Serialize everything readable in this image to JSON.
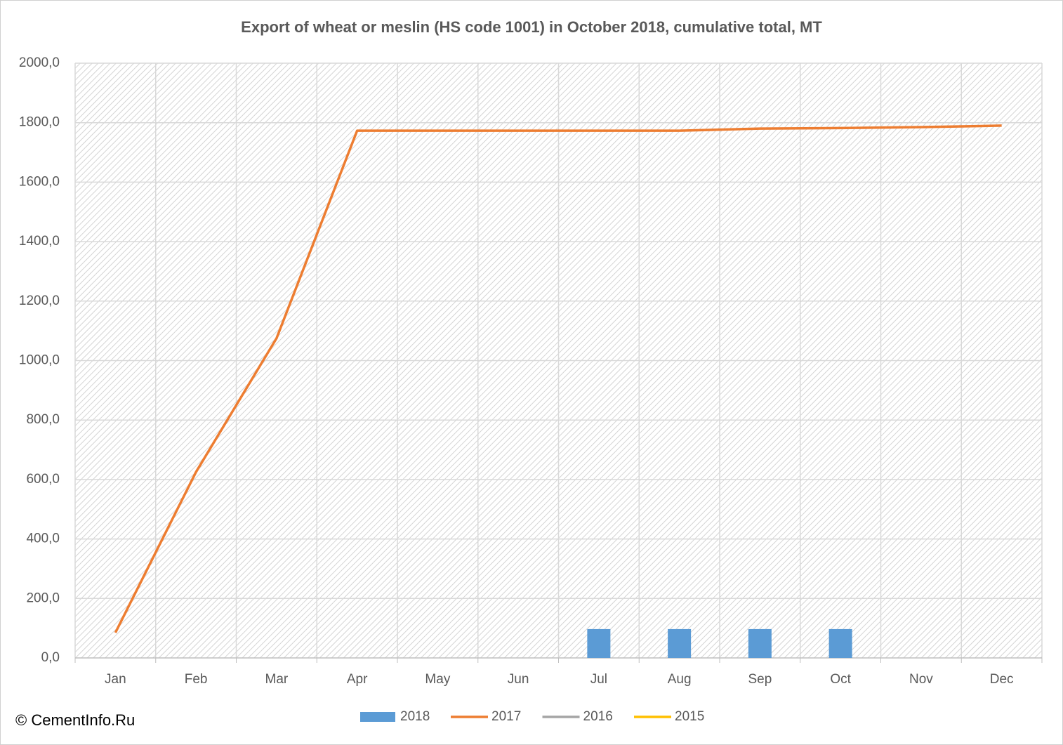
{
  "chart_data": {
    "type": "combo",
    "title": "Export of wheat or meslin  (HS code 1001) in October 2018, cumulative total, MT",
    "source": "© CementInfo.Ru",
    "categories": [
      "Jan",
      "Feb",
      "Mar",
      "Apr",
      "May",
      "Jun",
      "Jul",
      "Aug",
      "Sep",
      "Oct",
      "Nov",
      "Dec"
    ],
    "series": [
      {
        "name": "2018",
        "type": "bar",
        "color": "#5b9bd5",
        "values": [
          null,
          null,
          null,
          null,
          null,
          null,
          97,
          97,
          97,
          97,
          null,
          null
        ]
      },
      {
        "name": "2017",
        "type": "line",
        "color": "#ed7d31",
        "values": [
          85,
          625,
          1075,
          1773,
          1773,
          1773,
          1773,
          1773,
          1780,
          1782,
          1785,
          1790
        ]
      },
      {
        "name": "2016",
        "type": "line",
        "color": "#a5a5a5",
        "values": [
          null,
          null,
          null,
          null,
          null,
          null,
          null,
          null,
          null,
          null,
          null,
          null
        ]
      },
      {
        "name": "2015",
        "type": "line",
        "color": "#ffc000",
        "values": [
          null,
          null,
          null,
          null,
          null,
          null,
          null,
          null,
          null,
          null,
          null,
          null
        ]
      }
    ],
    "ylim": [
      0,
      2000
    ],
    "yticks": [
      {
        "value": 0,
        "label": "0,0"
      },
      {
        "value": 200,
        "label": "200,0"
      },
      {
        "value": 400,
        "label": "400,0"
      },
      {
        "value": 600,
        "label": "600,0"
      },
      {
        "value": 800,
        "label": "800,0"
      },
      {
        "value": 1000,
        "label": "1000,0"
      },
      {
        "value": 1200,
        "label": "1200,0"
      },
      {
        "value": 1400,
        "label": "1400,0"
      },
      {
        "value": 1600,
        "label": "1600,0"
      },
      {
        "value": 1800,
        "label": "1800,0"
      },
      {
        "value": 2000,
        "label": "2000,0"
      }
    ],
    "grid": true,
    "legend": "bottom"
  }
}
